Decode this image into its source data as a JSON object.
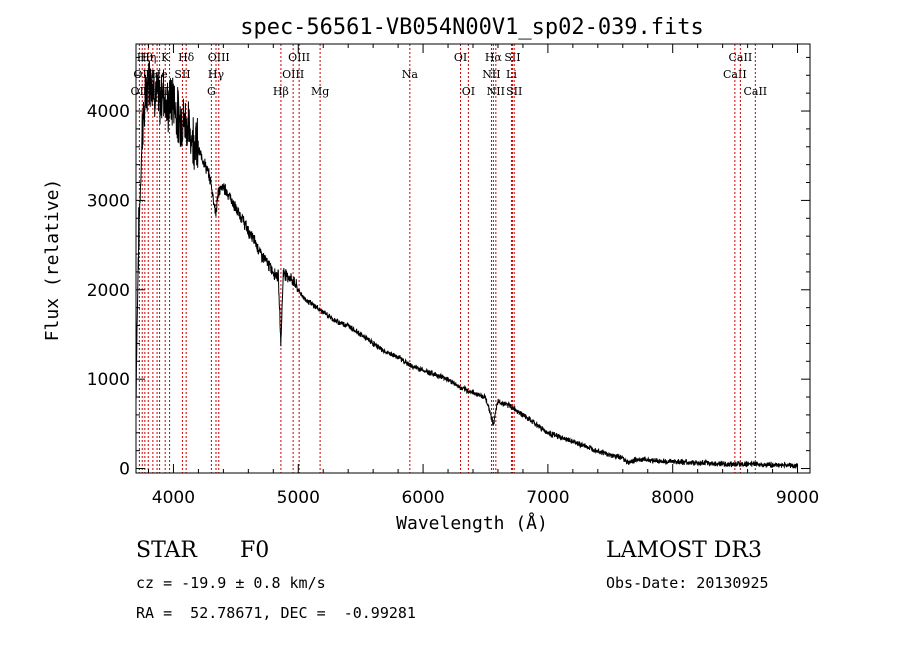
{
  "chart_data": {
    "type": "line",
    "title": "spec-56561-VB054N00V1_sp02-039.fits",
    "xlabel": "Wavelength (Å)",
    "ylabel": "Flux (relative)",
    "xlim": [
      3700,
      9100
    ],
    "ylim": [
      -50,
      4750
    ],
    "x_ticks": [
      4000,
      5000,
      6000,
      7000,
      8000,
      9000
    ],
    "y_ticks": [
      0,
      1000,
      2000,
      3000,
      4000
    ],
    "grid": false,
    "series": [
      {
        "name": "flux",
        "x": [
          3700,
          3720,
          3750,
          3780,
          3800,
          3830,
          3860,
          3890,
          3920,
          3950,
          3970,
          4000,
          4030,
          4060,
          4100,
          4130,
          4170,
          4200,
          4240,
          4280,
          4300,
          4340,
          4360,
          4400,
          4450,
          4500,
          4550,
          4600,
          4650,
          4700,
          4750,
          4800,
          4840,
          4861,
          4880,
          4920,
          4960,
          5000,
          5050,
          5100,
          5150,
          5200,
          5250,
          5300,
          5400,
          5500,
          5600,
          5700,
          5800,
          5900,
          6000,
          6100,
          6200,
          6300,
          6400,
          6500,
          6563,
          6600,
          6700,
          6800,
          6900,
          7000,
          7100,
          7200,
          7300,
          7400,
          7500,
          7600,
          7650,
          7700,
          7800,
          7900,
          8000,
          8100,
          8200,
          8300,
          8400,
          8500,
          8600,
          8700,
          8800,
          8900,
          9000
        ],
        "y": [
          900,
          2500,
          3800,
          4150,
          4400,
          4350,
          4200,
          4100,
          4250,
          4000,
          4100,
          4150,
          3950,
          3900,
          3900,
          3750,
          3700,
          3550,
          3450,
          3300,
          3200,
          2850,
          3100,
          3150,
          3050,
          2900,
          2800,
          2650,
          2550,
          2400,
          2300,
          2200,
          2150,
          1400,
          2200,
          2150,
          2100,
          2000,
          1900,
          1850,
          1800,
          1750,
          1700,
          1650,
          1600,
          1500,
          1400,
          1300,
          1250,
          1150,
          1100,
          1050,
          1000,
          900,
          850,
          800,
          500,
          750,
          700,
          600,
          500,
          400,
          350,
          300,
          250,
          200,
          150,
          120,
          60,
          100,
          100,
          80,
          80,
          70,
          60,
          60,
          50,
          50,
          50,
          50,
          40,
          40,
          30
        ]
      }
    ],
    "spectral_lines": [
      {
        "x": 3727,
        "label": "OII",
        "row": 2
      },
      {
        "x": 3750,
        "label": "OII",
        "row": 1
      },
      {
        "x": 3771,
        "label": "Hθ",
        "row": 0
      },
      {
        "x": 3798,
        "label": "Hη",
        "row": 0
      },
      {
        "x": 3835,
        "label": "Hε",
        "row": 1
      },
      {
        "x": 3869,
        "label": "NeIII",
        "row": 2
      },
      {
        "x": 3889,
        "label": "He",
        "row": 1
      },
      {
        "x": 3934,
        "label": "K",
        "row": 0
      },
      {
        "x": 3969,
        "label": "H",
        "row": 2
      },
      {
        "x": 4072,
        "label": "SII",
        "row": 1
      },
      {
        "x": 4102,
        "label": "Hδ",
        "row": 0
      },
      {
        "x": 4304,
        "label": "G",
        "row": 2
      },
      {
        "x": 4341,
        "label": "Hγ",
        "row": 1
      },
      {
        "x": 4363,
        "label": "OIII",
        "row": 0
      },
      {
        "x": 4861,
        "label": "Hβ",
        "row": 2
      },
      {
        "x": 4959,
        "label": "OIII",
        "row": 1
      },
      {
        "x": 5007,
        "label": "OIII",
        "row": 0
      },
      {
        "x": 5175,
        "label": "Mg",
        "row": 2
      },
      {
        "x": 5894,
        "label": "Na",
        "row": 1
      },
      {
        "x": 6300,
        "label": "OI",
        "row": 0
      },
      {
        "x": 6363,
        "label": "OI",
        "row": 2
      },
      {
        "x": 6548,
        "label": "NII",
        "row": 1
      },
      {
        "x": 6563,
        "label": "Hα",
        "row": 0
      },
      {
        "x": 6583,
        "label": "NII",
        "row": 2
      },
      {
        "x": 6708,
        "label": "Li",
        "row": 1
      },
      {
        "x": 6716,
        "label": "SII",
        "row": 0
      },
      {
        "x": 6730,
        "label": "SII",
        "row": 2
      },
      {
        "x": 8498,
        "label": "CaII",
        "row": 1
      },
      {
        "x": 8542,
        "label": "CaII",
        "row": 0
      },
      {
        "x": 8662,
        "label": "CaII",
        "row": 2
      }
    ],
    "line_color": "#000000",
    "marker_color": "#cc0000"
  },
  "info": {
    "object_class": "STAR",
    "subclass": "F0",
    "survey": "LAMOST DR3",
    "redshift_text": "cz = -19.9 ± 0.8 km/s",
    "obs_date": "Obs-Date: 20130925",
    "coords": "RA =  52.78671, DEC =  -0.99281"
  }
}
